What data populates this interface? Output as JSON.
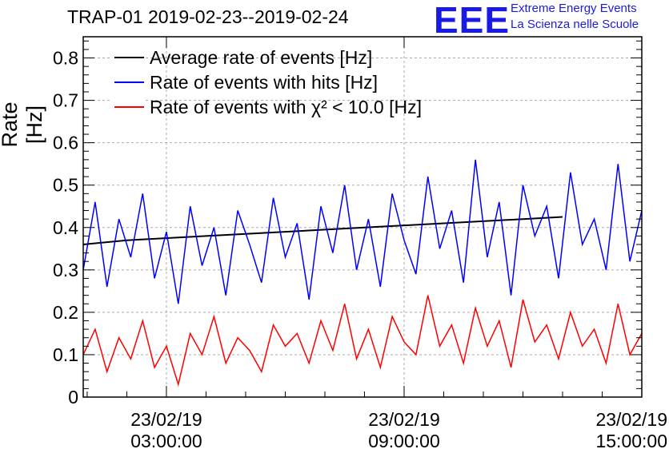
{
  "header": {
    "title": "TRAP-01 2019-02-23--2019-02-24",
    "logo_text": "EEE",
    "logo_line1": "Extreme Energy Events",
    "logo_line2": "La Scienza nelle Scuole"
  },
  "chart_data": {
    "type": "line",
    "title": "TRAP-01 2019-02-23--2019-02-24",
    "ylabel": "Rate [Hz]",
    "xlabel": "",
    "ylim": [
      0,
      0.85
    ],
    "yticks": [
      0,
      0.1,
      0.2,
      0.3,
      0.4,
      0.5,
      0.6,
      0.7,
      0.8
    ],
    "ytick_labels": [
      "0",
      "0.1",
      "0.2",
      "0.3",
      "0.4",
      "0.5",
      "0.6",
      "0.7",
      "0.8"
    ],
    "xlim_hours": [
      0.9,
      15.0
    ],
    "xticks_hours": [
      3,
      9,
      15
    ],
    "xtick_labels": [
      {
        "date": "23/02/19",
        "time": "03:00:00"
      },
      {
        "date": "23/02/19",
        "time": "09:00:00"
      },
      {
        "date": "23/02/19",
        "time": "15:00:00"
      }
    ],
    "grid": true,
    "legend_position": "top-left",
    "legend": [
      {
        "label": "Average rate of events [Hz]",
        "color": "#000000"
      },
      {
        "label": "Rate of events with hits [Hz]",
        "color": "#0000ff"
      },
      {
        "label": "Rate of events with χ² < 10.0 [Hz]",
        "color": "#ff0000"
      }
    ],
    "series": [
      {
        "name": "Average rate of events [Hz]",
        "color": "#000000",
        "x": [
          0.9,
          2.0,
          4.0,
          6.0,
          8.0,
          9.0,
          10.0,
          12.0,
          13.0
        ],
        "values": [
          0.36,
          0.37,
          0.38,
          0.39,
          0.4,
          0.405,
          0.41,
          0.42,
          0.425
        ]
      },
      {
        "name": "Rate of events with hits [Hz]",
        "color": "#0000ff",
        "x": [
          0.9,
          1.2,
          1.5,
          1.8,
          2.1,
          2.4,
          2.7,
          3.0,
          3.3,
          3.6,
          3.9,
          4.2,
          4.5,
          4.8,
          5.1,
          5.4,
          5.7,
          6.0,
          6.3,
          6.6,
          6.9,
          7.2,
          7.5,
          7.8,
          8.1,
          8.4,
          8.7,
          9.0,
          9.3,
          9.6,
          9.9,
          10.2,
          10.5,
          10.8,
          11.1,
          11.4,
          11.7,
          12.0,
          12.3,
          12.6,
          12.9,
          13.2,
          13.5,
          13.8,
          14.1,
          14.4,
          14.7,
          15.0
        ],
        "values": [
          0.3,
          0.46,
          0.26,
          0.42,
          0.33,
          0.48,
          0.28,
          0.39,
          0.22,
          0.45,
          0.31,
          0.4,
          0.24,
          0.44,
          0.36,
          0.27,
          0.47,
          0.33,
          0.41,
          0.23,
          0.45,
          0.34,
          0.5,
          0.3,
          0.42,
          0.26,
          0.48,
          0.37,
          0.29,
          0.52,
          0.35,
          0.44,
          0.27,
          0.56,
          0.33,
          0.46,
          0.24,
          0.5,
          0.38,
          0.45,
          0.28,
          0.53,
          0.36,
          0.42,
          0.3,
          0.55,
          0.32,
          0.44
        ]
      },
      {
        "name": "Rate of events with χ² < 10.0 [Hz]",
        "color": "#ff0000",
        "x": [
          0.9,
          1.2,
          1.5,
          1.8,
          2.1,
          2.4,
          2.7,
          3.0,
          3.3,
          3.6,
          3.9,
          4.2,
          4.5,
          4.8,
          5.1,
          5.4,
          5.7,
          6.0,
          6.3,
          6.6,
          6.9,
          7.2,
          7.5,
          7.8,
          8.1,
          8.4,
          8.7,
          9.0,
          9.3,
          9.6,
          9.9,
          10.2,
          10.5,
          10.8,
          11.1,
          11.4,
          11.7,
          12.0,
          12.3,
          12.6,
          12.9,
          13.2,
          13.5,
          13.8,
          14.1,
          14.4,
          14.7,
          15.0
        ],
        "values": [
          0.1,
          0.16,
          0.06,
          0.14,
          0.09,
          0.18,
          0.07,
          0.12,
          0.03,
          0.15,
          0.1,
          0.19,
          0.08,
          0.14,
          0.11,
          0.06,
          0.17,
          0.12,
          0.15,
          0.08,
          0.18,
          0.11,
          0.22,
          0.09,
          0.16,
          0.07,
          0.19,
          0.13,
          0.1,
          0.24,
          0.12,
          0.17,
          0.08,
          0.21,
          0.12,
          0.18,
          0.07,
          0.23,
          0.13,
          0.17,
          0.09,
          0.2,
          0.12,
          0.16,
          0.08,
          0.22,
          0.1,
          0.15
        ]
      }
    ]
  }
}
